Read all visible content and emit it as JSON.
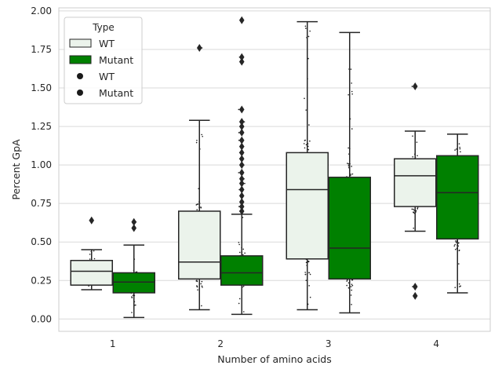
{
  "chart_data": {
    "type": "box",
    "xlabel": "Number of amino acids",
    "ylabel": "Percent GpA",
    "categories": [
      "1",
      "2",
      "3",
      "4"
    ],
    "ylim": [
      -0.08,
      2.02
    ],
    "yticks": [
      0.0,
      0.25,
      0.5,
      0.75,
      1.0,
      1.25,
      1.5,
      1.75,
      2.0
    ],
    "ytick_labels": [
      "0.00",
      "0.25",
      "0.50",
      "0.75",
      "1.00",
      "1.25",
      "1.50",
      "1.75",
      "2.00"
    ],
    "grid": true,
    "legend": {
      "title": "Type",
      "placement": "top-left",
      "entries": [
        {
          "label": "WT",
          "marker": "box",
          "color": "#ebf3eb"
        },
        {
          "label": "Mutant",
          "marker": "box",
          "color": "#008000"
        },
        {
          "label": "WT",
          "marker": "dot",
          "color": "#1a1a1a"
        },
        {
          "label": "Mutant",
          "marker": "dot",
          "color": "#1a1a1a"
        }
      ]
    },
    "series": [
      {
        "name": "WT",
        "color": "#ebf3eb",
        "boxes": [
          {
            "category": "1",
            "whisker_low": 0.19,
            "q1": 0.22,
            "median": 0.31,
            "q3": 0.38,
            "whisker_high": 0.45,
            "outliers": [
              0.64
            ]
          },
          {
            "category": "2",
            "whisker_low": 0.06,
            "q1": 0.26,
            "median": 0.37,
            "q3": 0.7,
            "whisker_high": 1.29,
            "outliers": [
              1.76
            ]
          },
          {
            "category": "3",
            "whisker_low": 0.06,
            "q1": 0.39,
            "median": 0.84,
            "q3": 1.08,
            "whisker_high": 1.93,
            "outliers": []
          },
          {
            "category": "4",
            "whisker_low": 0.57,
            "q1": 0.73,
            "median": 0.93,
            "q3": 1.04,
            "whisker_high": 1.22,
            "outliers": [
              0.15,
              0.21,
              1.51
            ]
          }
        ]
      },
      {
        "name": "Mutant",
        "color": "#008000",
        "boxes": [
          {
            "category": "1",
            "whisker_low": 0.01,
            "q1": 0.17,
            "median": 0.24,
            "q3": 0.3,
            "whisker_high": 0.48,
            "outliers": [
              0.59,
              0.63
            ]
          },
          {
            "category": "2",
            "whisker_low": 0.03,
            "q1": 0.22,
            "median": 0.3,
            "q3": 0.41,
            "whisker_high": 0.68,
            "outliers": [
              0.7,
              0.73,
              0.76,
              0.8,
              0.84,
              0.88,
              0.91,
              0.95,
              1.0,
              1.04,
              1.08,
              1.12,
              1.16,
              1.21,
              1.25,
              1.28,
              1.36,
              1.67,
              1.7,
              1.94
            ]
          },
          {
            "category": "3",
            "whisker_low": 0.04,
            "q1": 0.26,
            "median": 0.46,
            "q3": 0.92,
            "whisker_high": 1.86,
            "outliers": []
          },
          {
            "category": "4",
            "whisker_low": 0.17,
            "q1": 0.52,
            "median": 0.82,
            "q3": 1.06,
            "whisker_high": 1.2,
            "outliers": []
          }
        ]
      }
    ]
  }
}
